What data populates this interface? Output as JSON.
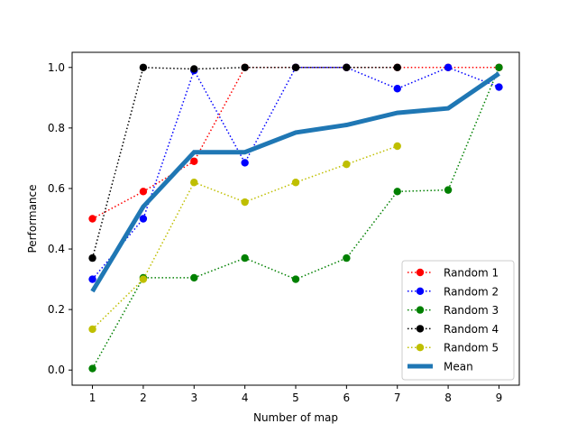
{
  "chart_data": {
    "type": "line",
    "title": "",
    "xlabel": "Number of map",
    "ylabel": "Performance",
    "xlim": [
      0.6,
      9.4
    ],
    "ylim": [
      -0.05,
      1.05
    ],
    "xticks": [
      1,
      2,
      3,
      4,
      5,
      6,
      7,
      8,
      9
    ],
    "yticks": [
      0.0,
      0.2,
      0.4,
      0.6,
      0.8,
      1.0
    ],
    "ytick_labels": [
      "0.0",
      "0.2",
      "0.4",
      "0.6",
      "0.8",
      "1.0"
    ],
    "grid": false,
    "legend_position": "bottom-right",
    "series": [
      {
        "name": "Random 1",
        "color": "#ff0000",
        "style": "dotted-marker",
        "x": [
          1,
          2,
          3,
          4,
          5,
          6,
          7,
          8,
          9
        ],
        "values": [
          0.5,
          0.59,
          0.69,
          1.0,
          1.0,
          1.0,
          1.0,
          1.0,
          1.0
        ]
      },
      {
        "name": "Random 2",
        "color": "#0000ff",
        "style": "dotted-marker",
        "x": [
          1,
          2,
          3,
          4,
          5,
          6,
          7,
          8,
          9
        ],
        "values": [
          0.3,
          0.5,
          0.99,
          0.685,
          1.0,
          1.0,
          0.93,
          1.0,
          0.935
        ]
      },
      {
        "name": "Random 3",
        "color": "#008000",
        "style": "dotted-marker",
        "x": [
          1,
          2,
          3,
          4,
          5,
          6,
          7,
          8,
          9
        ],
        "values": [
          0.005,
          0.305,
          0.305,
          0.37,
          0.3,
          0.37,
          0.59,
          0.595,
          1.0
        ]
      },
      {
        "name": "Random 4",
        "color": "#000000",
        "style": "dotted-marker",
        "x": [
          1,
          2,
          3,
          4,
          5,
          6,
          7
        ],
        "values": [
          0.37,
          1.0,
          0.995,
          1.0,
          1.0,
          1.0,
          1.0
        ]
      },
      {
        "name": "Random 5",
        "color": "#bfbf00",
        "style": "dotted-marker",
        "x": [
          1,
          2,
          3,
          4,
          5,
          6,
          7
        ],
        "values": [
          0.135,
          0.3,
          0.62,
          0.555,
          0.62,
          0.68,
          0.74
        ]
      },
      {
        "name": "Mean",
        "color": "#1f77b4",
        "style": "thick-line",
        "x": [
          1,
          2,
          3,
          4,
          5,
          6,
          7,
          8,
          9
        ],
        "values": [
          0.26,
          0.54,
          0.72,
          0.72,
          0.785,
          0.81,
          0.85,
          0.865,
          0.98
        ]
      }
    ]
  }
}
